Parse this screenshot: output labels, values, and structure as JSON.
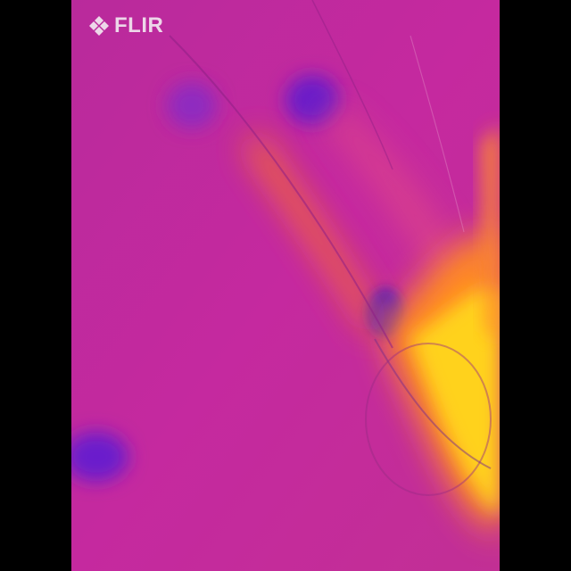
{
  "brand": {
    "logo_text": "FLIR",
    "logo_icon": "flir-diamond-logo-icon"
  },
  "palette": {
    "letterbox": "#000000",
    "background": "#c1279f",
    "cold": "#6b1fc9",
    "warm": "#ff7a1a",
    "hot": "#ffd21f"
  }
}
